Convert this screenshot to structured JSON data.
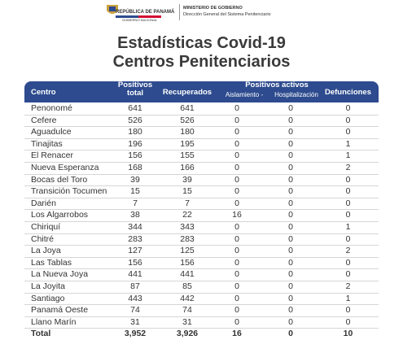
{
  "header": {
    "country": "REPÚBLICA DE PANAMÁ",
    "government": "GOBIERNO NACIONAL",
    "ministry": "MINISTERIO DE GOBIERNO",
    "directorate": "Dirección General del Sistema Penitenciario"
  },
  "title": [
    "Estadísticas Covid-19",
    "Centros Penitenciarios"
  ],
  "table": {
    "columns": [
      "Centro",
      "Positivos total",
      "Recuperados",
      "Positivos activos",
      "Defunciones"
    ],
    "subcolumns": [
      "Aislamiento -",
      "Hospitalización"
    ],
    "rows": [
      [
        "Penonomé",
        "641",
        "641",
        "0",
        "0",
        "0"
      ],
      [
        "Cefere",
        "526",
        "526",
        "0",
        "0",
        "0"
      ],
      [
        "Aguadulce",
        "180",
        "180",
        "0",
        "0",
        "0"
      ],
      [
        "Tinajitas",
        "196",
        "195",
        "0",
        "0",
        "1"
      ],
      [
        "El Renacer",
        "156",
        "155",
        "0",
        "0",
        "1"
      ],
      [
        "Nueva Esperanza",
        "168",
        "166",
        "0",
        "0",
        "2"
      ],
      [
        "Bocas del Toro",
        "39",
        "39",
        "0",
        "0",
        "0"
      ],
      [
        "Transición Tocumen",
        "15",
        "15",
        "0",
        "0",
        "0"
      ],
      [
        "Darién",
        "7",
        "7",
        "0",
        "0",
        "0"
      ],
      [
        "Los Algarrobos",
        "38",
        "22",
        "16",
        "0",
        "0"
      ],
      [
        "Chiriquí",
        "344",
        "343",
        "0",
        "0",
        "1"
      ],
      [
        "Chitré",
        "283",
        "283",
        "0",
        "0",
        "0"
      ],
      [
        "La Joya",
        "127",
        "125",
        "0",
        "0",
        "2"
      ],
      [
        "Las Tablas",
        "156",
        "156",
        "0",
        "0",
        "0"
      ],
      [
        "La Nueva Joya",
        "441",
        "441",
        "0",
        "0",
        "0"
      ],
      [
        "La Joyita",
        "87",
        "85",
        "0",
        "0",
        "2"
      ],
      [
        "Santiago",
        "443",
        "442",
        "0",
        "0",
        "1"
      ],
      [
        "Panamá Oeste",
        "74",
        "74",
        "0",
        "0",
        "0"
      ],
      [
        "Llano Marín",
        "31",
        "31",
        "0",
        "0",
        "0"
      ]
    ],
    "total": [
      "Total",
      "3,952",
      "3,926",
      "16",
      "0",
      "10"
    ]
  }
}
